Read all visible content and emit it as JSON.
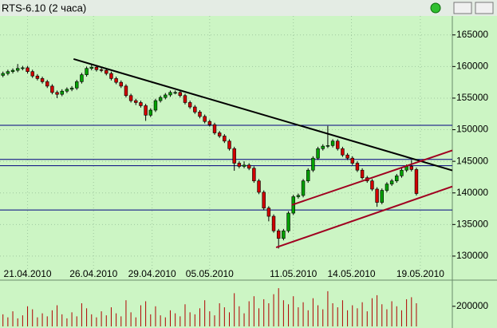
{
  "chart_data": {
    "type": "candlestick",
    "title": "RTS-6.10 (2 часа)",
    "open": [
      158600,
      158900,
      159200,
      159400,
      159700,
      159800,
      159200,
      158500,
      158100,
      157600,
      156900,
      155900,
      155600,
      156100,
      156400,
      156600,
      157600,
      158700,
      159700,
      159900,
      159500,
      159400,
      158900,
      158100,
      157500,
      156900,
      155400,
      154600,
      154300,
      153800,
      152300,
      153100,
      154600,
      155100,
      155500,
      155900,
      155900,
      155400,
      154300,
      153600,
      152800,
      152100,
      151300,
      150800,
      149500,
      149000,
      148200,
      147000,
      144700,
      144200,
      144400,
      143900,
      141900,
      140100,
      137600,
      136300,
      134000,
      132800,
      134000,
      136800,
      139400,
      139600,
      141900,
      143600,
      145500,
      147000,
      147400,
      147500,
      148200,
      147000,
      146000,
      145500,
      144700,
      143600,
      142400,
      141900,
      140600,
      138500,
      140400,
      141400,
      141900,
      142700,
      143600,
      144200,
      143700
    ],
    "high": [
      159200,
      159500,
      159700,
      160400,
      160100,
      160100,
      159500,
      158800,
      158400,
      157900,
      157200,
      156200,
      156400,
      156700,
      156900,
      157900,
      159000,
      160000,
      160300,
      160200,
      159800,
      159700,
      159200,
      158400,
      157800,
      157200,
      155700,
      154900,
      154600,
      154100,
      153400,
      154900,
      155400,
      155800,
      156200,
      156200,
      156200,
      155700,
      154600,
      153900,
      153100,
      152400,
      151600,
      151100,
      149800,
      149300,
      148500,
      147300,
      145000,
      145000,
      144700,
      144200,
      142200,
      140400,
      137900,
      136600,
      134300,
      134300,
      137100,
      139700,
      139900,
      142200,
      143900,
      145800,
      147300,
      147700,
      150600,
      148500,
      148500,
      147300,
      146300,
      145800,
      145000,
      143900,
      142700,
      142200,
      140900,
      140700,
      141700,
      142200,
      143000,
      143900,
      144500,
      145200,
      144000
    ],
    "low": [
      158300,
      158600,
      158900,
      159100,
      159400,
      158900,
      158200,
      157800,
      157300,
      156600,
      155600,
      155000,
      155300,
      155800,
      156100,
      156300,
      157300,
      158400,
      159400,
      159200,
      159100,
      158600,
      157800,
      157200,
      156600,
      155100,
      154300,
      153900,
      153500,
      151400,
      152000,
      152800,
      154300,
      154800,
      155200,
      155600,
      155100,
      154000,
      153300,
      152500,
      151800,
      151000,
      150500,
      149200,
      148700,
      147900,
      146700,
      143500,
      143900,
      143900,
      143600,
      141600,
      139800,
      137300,
      135500,
      133700,
      131200,
      132500,
      133700,
      136500,
      139100,
      139300,
      141600,
      143300,
      145200,
      146700,
      147100,
      147200,
      146700,
      145700,
      145200,
      144400,
      143300,
      142100,
      141600,
      140300,
      137800,
      138200,
      140100,
      141100,
      141600,
      142400,
      143300,
      143400,
      139600
    ],
    "close": [
      158900,
      159200,
      159400,
      159700,
      159800,
      159200,
      158500,
      158100,
      157600,
      156900,
      155900,
      155600,
      156100,
      156400,
      156600,
      157600,
      158700,
      159700,
      159900,
      159500,
      159400,
      158900,
      158100,
      157500,
      156900,
      155400,
      154600,
      154300,
      153800,
      152300,
      153100,
      154600,
      155100,
      155500,
      155900,
      155900,
      155400,
      154300,
      153600,
      152800,
      152100,
      151300,
      150800,
      149500,
      149000,
      148200,
      147000,
      144700,
      144200,
      144400,
      143900,
      141900,
      140100,
      137600,
      136300,
      134000,
      132800,
      134000,
      136800,
      139400,
      139600,
      141900,
      143600,
      145500,
      147000,
      147400,
      147500,
      148200,
      147000,
      146000,
      145500,
      144700,
      143600,
      142400,
      141900,
      140600,
      138500,
      140400,
      141400,
      141900,
      142700,
      143600,
      144200,
      143700,
      139900
    ],
    "volume": [
      120000,
      90000,
      150000,
      80000,
      110000,
      200000,
      170000,
      90000,
      130000,
      100000,
      160000,
      210000,
      120000,
      80000,
      140000,
      100000,
      230000,
      180000,
      120000,
      90000,
      150000,
      110000,
      190000,
      130000,
      100000,
      260000,
      140000,
      90000,
      210000,
      250000,
      120000,
      200000,
      110000,
      90000,
      160000,
      130000,
      100000,
      220000,
      140000,
      120000,
      180000,
      260000,
      150000,
      110000,
      230000,
      190000,
      140000,
      330000,
      200000,
      130000,
      250000,
      300000,
      180000,
      270000,
      230000,
      320000,
      380000,
      260000,
      220000,
      300000,
      190000,
      240000,
      160000,
      280000,
      210000,
      170000,
      350000,
      230000,
      190000,
      260000,
      160000,
      210000,
      180000,
      240000,
      150000,
      280000,
      310000,
      220000,
      170000,
      250000,
      200000,
      160000,
      270000,
      290000,
      230000
    ],
    "up_color": "#00a000",
    "down_color": "#d00000",
    "xlim": [
      -0.6,
      91.3
    ],
    "ylim": [
      126200,
      168000
    ],
    "yticks": [
      130000,
      135000,
      140000,
      145000,
      150000,
      155000,
      160000,
      165000
    ],
    "xticks": [
      {
        "value": 5,
        "label": "21.04.2010"
      },
      {
        "value": 18.4,
        "label": "26.04.2010"
      },
      {
        "value": 30.3,
        "label": "29.04.2010"
      },
      {
        "value": 42,
        "label": "05.05.2010"
      },
      {
        "value": 59,
        "label": "11.05.2010"
      },
      {
        "value": 70.8,
        "label": "14.05.2010"
      },
      {
        "value": 84.8,
        "label": "19.05.2010"
      }
    ],
    "volume_ylim": [
      0,
      460000
    ],
    "volume_yticks": [
      200000
    ],
    "volume_color": "#b00000",
    "hlines": {
      "color": "#000080",
      "values": [
        150700,
        145300,
        144300,
        137300
      ]
    },
    "trendlines": [
      {
        "color": "#000000",
        "x": [
          14.35,
          91.3
        ],
        "y": [
          161190,
          143560
        ]
      },
      {
        "color": "#a00020",
        "x": [
          55.5,
          91.3
        ],
        "y": [
          131370,
          141010
        ]
      },
      {
        "color": "#a00020",
        "x": [
          58.7,
          91.3
        ],
        "y": [
          138100,
          146730
        ]
      }
    ],
    "grid": true
  }
}
